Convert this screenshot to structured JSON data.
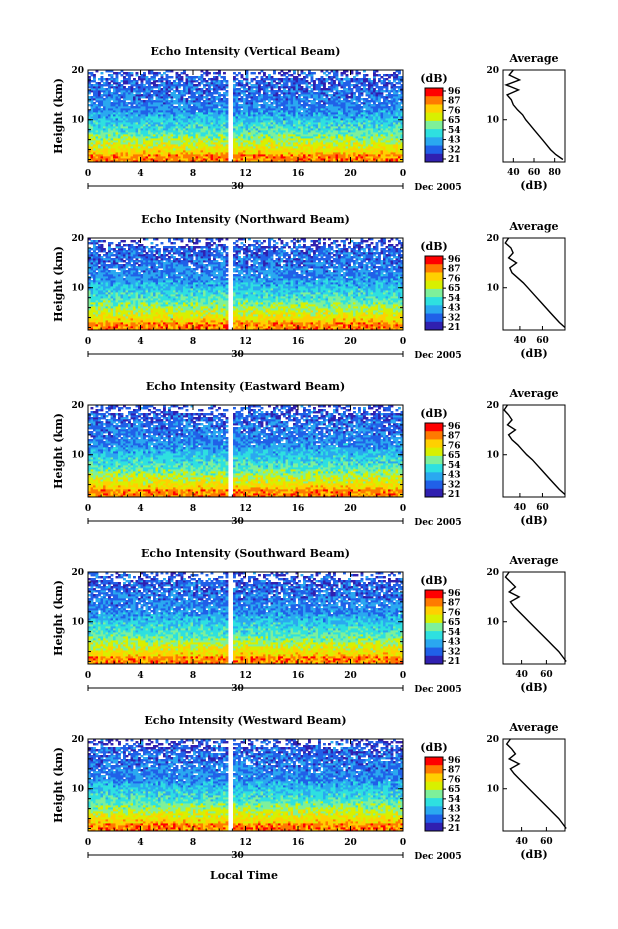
{
  "figure": {
    "xlabel": "Local Time",
    "date_label": "Dec 2005",
    "day_label": "30",
    "x_ticks": [
      "0",
      "4",
      "8",
      "12",
      "16",
      "20",
      "0"
    ],
    "y_ticks": [
      "20",
      "10"
    ],
    "ylabel": "Height (km)",
    "colorbar_unit": "(dB)",
    "colorbar_ticks": [
      "96",
      "87",
      "76",
      "65",
      "54",
      "43",
      "32",
      "21"
    ],
    "colorbar_colors": [
      "#ff0000",
      "#ff7a00",
      "#ffd000",
      "#d8f000",
      "#7ef09a",
      "#2ee0e0",
      "#2aa8f0",
      "#2060e8",
      "#3020b0"
    ],
    "profile_title": "Average",
    "profile_xlabel": "(dB)"
  },
  "chart_data": [
    {
      "type": "heatmap",
      "title": "Echo Intensity (Vertical Beam)",
      "x_range": [
        0,
        24
      ],
      "ylim": [
        1.5,
        20
      ],
      "gap_hours": [
        10.6,
        11.0
      ],
      "profile": {
        "type": "line",
        "x_ticks": [
          "40",
          "60",
          "80"
        ],
        "xlim": [
          30,
          90
        ],
        "heights": [
          20,
          19,
          18,
          17,
          16,
          15,
          14,
          13,
          12,
          11,
          10,
          9,
          8,
          7,
          6,
          5,
          4,
          3,
          2
        ],
        "values": [
          40,
          36,
          46,
          33,
          45,
          34,
          38,
          40,
          44,
          49,
          52,
          56,
          60,
          64,
          68,
          72,
          76,
          81,
          88
        ]
      }
    },
    {
      "type": "heatmap",
      "title": "Echo Intensity (Northward Beam)",
      "x_range": [
        0,
        24
      ],
      "ylim": [
        1.5,
        20
      ],
      "gap_hours": [
        10.6,
        11.0
      ],
      "profile": {
        "type": "line",
        "x_ticks": [
          "40",
          "60"
        ],
        "xlim": [
          25,
          80
        ],
        "heights": [
          20,
          19,
          18,
          17,
          16,
          15,
          14,
          13,
          12,
          11,
          10,
          9,
          8,
          7,
          6,
          5,
          4,
          3,
          2
        ],
        "values": [
          30,
          27,
          32,
          34,
          30,
          37,
          31,
          33,
          38,
          43,
          47,
          51,
          55,
          59,
          63,
          67,
          71,
          75,
          80
        ]
      }
    },
    {
      "type": "heatmap",
      "title": "Echo Intensity (Eastward Beam)",
      "x_range": [
        0,
        24
      ],
      "ylim": [
        1.5,
        20
      ],
      "gap_hours": [
        10.6,
        11.0
      ],
      "profile": {
        "type": "line",
        "x_ticks": [
          "40",
          "60"
        ],
        "xlim": [
          25,
          80
        ],
        "heights": [
          20,
          19,
          18,
          17,
          16,
          15,
          14,
          13,
          12,
          11,
          10,
          9,
          8,
          7,
          6,
          5,
          4,
          3,
          2
        ],
        "values": [
          29,
          26,
          30,
          33,
          29,
          36,
          30,
          33,
          38,
          42,
          46,
          51,
          55,
          59,
          63,
          67,
          71,
          75,
          80
        ]
      }
    },
    {
      "type": "heatmap",
      "title": "Echo Intensity (Southward Beam)",
      "x_range": [
        0,
        24
      ],
      "ylim": [
        1.5,
        20
      ],
      "gap_hours": [
        10.6,
        11.0
      ],
      "profile": {
        "type": "line",
        "x_ticks": [
          "40",
          "60"
        ],
        "xlim": [
          25,
          75
        ],
        "heights": [
          20,
          19,
          18,
          17,
          16,
          15,
          14,
          13,
          12,
          11,
          10,
          9,
          8,
          7,
          6,
          5,
          4,
          3,
          2
        ],
        "values": [
          30,
          27,
          31,
          35,
          30,
          38,
          31,
          34,
          38,
          42,
          46,
          50,
          54,
          58,
          62,
          66,
          70,
          73,
          76
        ]
      }
    },
    {
      "type": "heatmap",
      "title": "Echo Intensity (Westward Beam)",
      "x_range": [
        0,
        24
      ],
      "ylim": [
        1.5,
        20
      ],
      "gap_hours": [
        10.6,
        11.0
      ],
      "profile": {
        "type": "line",
        "x_ticks": [
          "40",
          "60"
        ],
        "xlim": [
          25,
          75
        ],
        "heights": [
          20,
          19,
          18,
          17,
          16,
          15,
          14,
          13,
          12,
          11,
          10,
          9,
          8,
          7,
          6,
          5,
          4,
          3,
          2
        ],
        "values": [
          31,
          28,
          32,
          35,
          30,
          38,
          31,
          34,
          38,
          42,
          46,
          50,
          54,
          58,
          62,
          66,
          70,
          73,
          76
        ]
      }
    }
  ]
}
